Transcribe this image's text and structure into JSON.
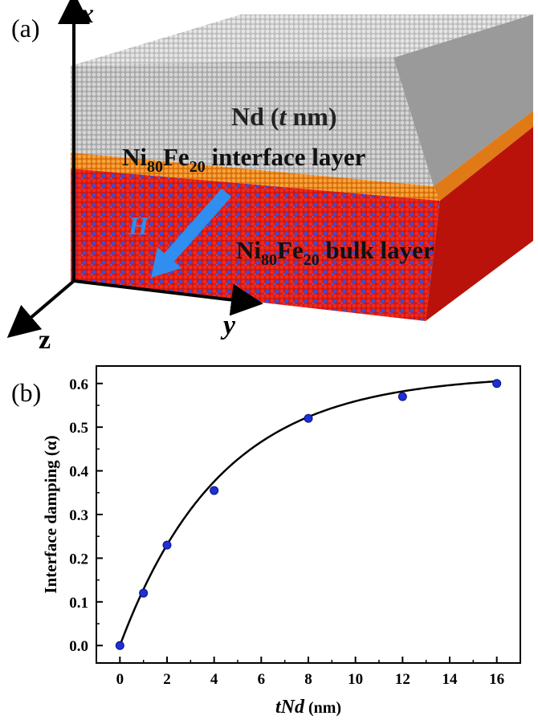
{
  "panel_a": {
    "panel_label": "(a)",
    "axis_x": "x",
    "axis_y": "y",
    "axis_z": "z",
    "field_label": "H",
    "layer_top": {
      "text": "Nd (",
      "italic": "t",
      "tail": " nm)"
    },
    "layer_interface": {
      "base1": "Ni",
      "sub1": "80",
      "base2": "Fe",
      "sub2": "20",
      "tail": " interface layer"
    },
    "layer_bulk": {
      "base1": "Ni",
      "sub1": "80",
      "base2": "Fe",
      "sub2": "20",
      "tail": " bulk layer"
    },
    "colors": {
      "nd": "#b9b9b9",
      "interface": "#f08a1c",
      "bulk": "#e0180f",
      "bulk_dots": "#3a4fd8",
      "arrow": "#2f8ef0"
    }
  },
  "panel_b": {
    "panel_label": "(b)",
    "chart_data": {
      "type": "scatter",
      "x": [
        0,
        1,
        2,
        4,
        8,
        12,
        16
      ],
      "y": [
        0.0,
        0.12,
        0.23,
        0.355,
        0.52,
        0.57,
        0.6
      ],
      "fit_curve": "smooth saturating fit through points",
      "xlabel_italic": "tNd",
      "xlabel_tail": " (nm)",
      "ylabel": "Interface damping (α)",
      "xlim": [
        -1,
        17
      ],
      "ylim": [
        -0.04,
        0.64
      ],
      "xticks": [
        "0",
        "2",
        "4",
        "6",
        "8",
        "10",
        "12",
        "14",
        "16"
      ],
      "yticks": [
        "0.0",
        "0.1",
        "0.2",
        "0.3",
        "0.4",
        "0.5",
        "0.6"
      ],
      "marker_color": "#1e2fd6",
      "grid": false
    }
  }
}
